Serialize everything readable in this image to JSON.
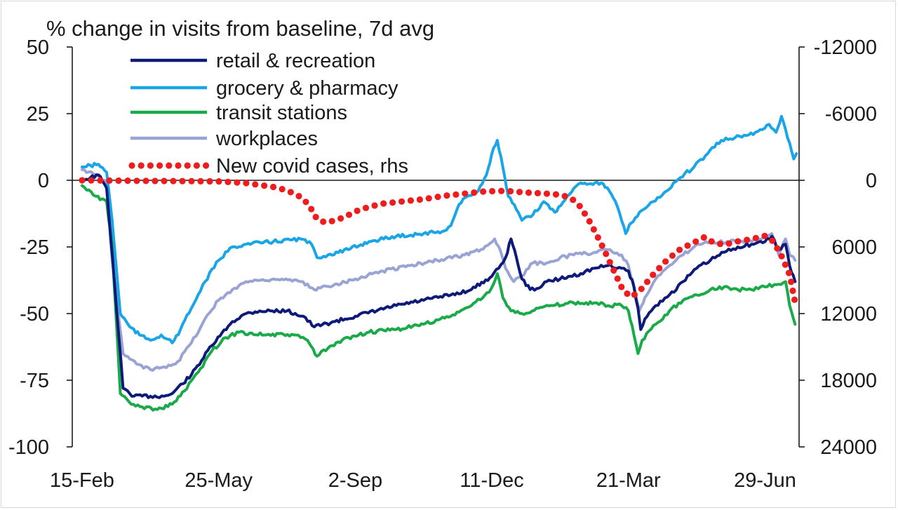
{
  "chart_data": {
    "type": "line",
    "title": "% change in visits from baseline, 7d avg",
    "x_tick_labels": [
      "15-Feb",
      "25-May",
      "2-Sep",
      "11-Dec",
      "21-Mar",
      "29-Jun"
    ],
    "x_tick_positions": [
      0,
      100,
      200,
      300,
      400,
      500
    ],
    "x_range": [
      0,
      530
    ],
    "y_left": {
      "ticks": [
        "50",
        "25",
        "0",
        "-25",
        "-50",
        "-75",
        "-100"
      ],
      "range": [
        -100,
        50
      ]
    },
    "y_right": {
      "ticks": [
        "-12000",
        "-6000",
        "0",
        "6000",
        "12000",
        "18000",
        "24000"
      ],
      "range": [
        -12000,
        24000
      ],
      "inverted": true
    },
    "zero_line": true,
    "grid": false,
    "legend_position": "top-left",
    "series": [
      {
        "name": "retail & recreation",
        "color": "#0d1a7a",
        "axis": "left",
        "style": "solid",
        "points": [
          [
            0,
            0
          ],
          [
            12,
            2
          ],
          [
            18,
            -3
          ],
          [
            24,
            -40
          ],
          [
            30,
            -78
          ],
          [
            38,
            -81
          ],
          [
            50,
            -81
          ],
          [
            60,
            -81
          ],
          [
            66,
            -80
          ],
          [
            80,
            -73
          ],
          [
            95,
            -62
          ],
          [
            110,
            -53
          ],
          [
            120,
            -50
          ],
          [
            130,
            -49
          ],
          [
            150,
            -49
          ],
          [
            162,
            -51
          ],
          [
            170,
            -55
          ],
          [
            185,
            -53
          ],
          [
            200,
            -51
          ],
          [
            230,
            -47
          ],
          [
            250,
            -45
          ],
          [
            270,
            -43
          ],
          [
            285,
            -41
          ],
          [
            300,
            -36
          ],
          [
            305,
            -33
          ],
          [
            310,
            -29
          ],
          [
            314,
            -22
          ],
          [
            318,
            -29
          ],
          [
            322,
            -37
          ],
          [
            328,
            -41
          ],
          [
            336,
            -40
          ],
          [
            340,
            -38
          ],
          [
            350,
            -37
          ],
          [
            365,
            -35
          ],
          [
            375,
            -33
          ],
          [
            385,
            -32
          ],
          [
            395,
            -33
          ],
          [
            400,
            -34
          ],
          [
            404,
            -40
          ],
          [
            407,
            -48
          ],
          [
            409,
            -56
          ],
          [
            412,
            -52
          ],
          [
            420,
            -47
          ],
          [
            430,
            -43
          ],
          [
            440,
            -38
          ],
          [
            450,
            -33
          ],
          [
            460,
            -30
          ],
          [
            470,
            -27
          ],
          [
            480,
            -25
          ],
          [
            490,
            -24
          ],
          [
            500,
            -23
          ],
          [
            505,
            -21
          ],
          [
            510,
            -26
          ],
          [
            515,
            -24
          ],
          [
            518,
            -32
          ],
          [
            522,
            -38
          ]
        ]
      },
      {
        "name": "grocery & pharmacy",
        "color": "#1aa6e6",
        "axis": "left",
        "style": "solid",
        "points": [
          [
            0,
            5
          ],
          [
            12,
            6
          ],
          [
            18,
            3
          ],
          [
            22,
            -15
          ],
          [
            28,
            -50
          ],
          [
            35,
            -55
          ],
          [
            42,
            -58
          ],
          [
            50,
            -60
          ],
          [
            58,
            -58
          ],
          [
            66,
            -61
          ],
          [
            72,
            -56
          ],
          [
            80,
            -48
          ],
          [
            90,
            -38
          ],
          [
            100,
            -30
          ],
          [
            110,
            -25
          ],
          [
            120,
            -24
          ],
          [
            140,
            -23
          ],
          [
            160,
            -22
          ],
          [
            168,
            -24
          ],
          [
            172,
            -29
          ],
          [
            180,
            -28
          ],
          [
            195,
            -26
          ],
          [
            210,
            -23
          ],
          [
            230,
            -21
          ],
          [
            250,
            -20
          ],
          [
            265,
            -19
          ],
          [
            270,
            -17
          ],
          [
            276,
            -9
          ],
          [
            282,
            -6
          ],
          [
            290,
            -4
          ],
          [
            296,
            2
          ],
          [
            300,
            10
          ],
          [
            304,
            15
          ],
          [
            308,
            5
          ],
          [
            312,
            -6
          ],
          [
            318,
            -11
          ],
          [
            322,
            -15
          ],
          [
            330,
            -13
          ],
          [
            338,
            -8
          ],
          [
            346,
            -12
          ],
          [
            355,
            -6
          ],
          [
            360,
            -3
          ],
          [
            365,
            -1
          ],
          [
            380,
            -1
          ],
          [
            386,
            -4
          ],
          [
            392,
            -10
          ],
          [
            398,
            -20
          ],
          [
            402,
            -16
          ],
          [
            408,
            -12
          ],
          [
            418,
            -8
          ],
          [
            428,
            -4
          ],
          [
            438,
            1
          ],
          [
            448,
            5
          ],
          [
            458,
            10
          ],
          [
            468,
            15
          ],
          [
            478,
            16
          ],
          [
            488,
            17
          ],
          [
            498,
            19
          ],
          [
            503,
            21
          ],
          [
            508,
            18
          ],
          [
            512,
            24
          ],
          [
            518,
            14
          ],
          [
            521,
            8
          ],
          [
            523,
            10
          ]
        ]
      },
      {
        "name": "transit stations",
        "color": "#1aaa4a",
        "axis": "left",
        "style": "solid",
        "points": [
          [
            0,
            -2
          ],
          [
            10,
            -6
          ],
          [
            18,
            -8
          ],
          [
            22,
            -25
          ],
          [
            28,
            -80
          ],
          [
            36,
            -84
          ],
          [
            44,
            -85
          ],
          [
            55,
            -86
          ],
          [
            66,
            -84
          ],
          [
            75,
            -79
          ],
          [
            85,
            -72
          ],
          [
            95,
            -64
          ],
          [
            105,
            -59
          ],
          [
            115,
            -57
          ],
          [
            135,
            -58
          ],
          [
            155,
            -58
          ],
          [
            165,
            -60
          ],
          [
            172,
            -66
          ],
          [
            180,
            -63
          ],
          [
            195,
            -59
          ],
          [
            210,
            -57
          ],
          [
            230,
            -56
          ],
          [
            250,
            -54
          ],
          [
            270,
            -51
          ],
          [
            285,
            -47
          ],
          [
            298,
            -42
          ],
          [
            304,
            -35
          ],
          [
            308,
            -44
          ],
          [
            314,
            -49
          ],
          [
            322,
            -50
          ],
          [
            334,
            -48
          ],
          [
            345,
            -47
          ],
          [
            360,
            -46
          ],
          [
            375,
            -46
          ],
          [
            385,
            -47
          ],
          [
            395,
            -47
          ],
          [
            400,
            -49
          ],
          [
            404,
            -58
          ],
          [
            407,
            -65
          ],
          [
            410,
            -60
          ],
          [
            420,
            -54
          ],
          [
            430,
            -49
          ],
          [
            440,
            -45
          ],
          [
            450,
            -43
          ],
          [
            460,
            -41
          ],
          [
            470,
            -40
          ],
          [
            480,
            -41
          ],
          [
            490,
            -41
          ],
          [
            500,
            -40
          ],
          [
            510,
            -39
          ],
          [
            515,
            -38
          ],
          [
            518,
            -47
          ],
          [
            522,
            -54
          ]
        ]
      },
      {
        "name": "workplaces",
        "color": "#9aa4d4",
        "axis": "left",
        "style": "solid",
        "points": [
          [
            0,
            4
          ],
          [
            10,
            2
          ],
          [
            18,
            -1
          ],
          [
            22,
            -30
          ],
          [
            30,
            -65
          ],
          [
            40,
            -69
          ],
          [
            50,
            -71
          ],
          [
            60,
            -70
          ],
          [
            70,
            -68
          ],
          [
            80,
            -61
          ],
          [
            90,
            -52
          ],
          [
            100,
            -45
          ],
          [
            110,
            -41
          ],
          [
            120,
            -38
          ],
          [
            140,
            -37
          ],
          [
            160,
            -38
          ],
          [
            170,
            -41
          ],
          [
            185,
            -39
          ],
          [
            200,
            -37
          ],
          [
            220,
            -34
          ],
          [
            240,
            -32
          ],
          [
            260,
            -30
          ],
          [
            280,
            -28
          ],
          [
            292,
            -26
          ],
          [
            302,
            -22
          ],
          [
            306,
            -26
          ],
          [
            310,
            -33
          ],
          [
            316,
            -38
          ],
          [
            322,
            -36
          ],
          [
            330,
            -31
          ],
          [
            340,
            -31
          ],
          [
            350,
            -29
          ],
          [
            360,
            -28
          ],
          [
            375,
            -27
          ],
          [
            385,
            -26
          ],
          [
            395,
            -28
          ],
          [
            400,
            -32
          ],
          [
            405,
            -42
          ],
          [
            408,
            -49
          ],
          [
            412,
            -44
          ],
          [
            420,
            -37
          ],
          [
            430,
            -32
          ],
          [
            440,
            -28
          ],
          [
            450,
            -24
          ],
          [
            460,
            -23
          ],
          [
            480,
            -23
          ],
          [
            495,
            -22
          ],
          [
            505,
            -20
          ],
          [
            510,
            -28
          ],
          [
            515,
            -22
          ],
          [
            518,
            -28
          ],
          [
            522,
            -30
          ]
        ]
      },
      {
        "name": "New covid cases, rhs",
        "color": "#ee1c1c",
        "axis": "right",
        "style": "dotted",
        "points": [
          [
            0,
            0
          ],
          [
            40,
            50
          ],
          [
            80,
            80
          ],
          [
            100,
            100
          ],
          [
            120,
            250
          ],
          [
            140,
            600
          ],
          [
            150,
            900
          ],
          [
            160,
            1500
          ],
          [
            166,
            2200
          ],
          [
            172,
            3500
          ],
          [
            178,
            3800
          ],
          [
            186,
            3600
          ],
          [
            194,
            3200
          ],
          [
            200,
            2800
          ],
          [
            210,
            2400
          ],
          [
            220,
            2100
          ],
          [
            235,
            1900
          ],
          [
            250,
            1700
          ],
          [
            265,
            1400
          ],
          [
            280,
            1200
          ],
          [
            295,
            1000
          ],
          [
            310,
            950
          ],
          [
            325,
            1100
          ],
          [
            340,
            1200
          ],
          [
            350,
            1300
          ],
          [
            358,
            1600
          ],
          [
            365,
            2400
          ],
          [
            372,
            3800
          ],
          [
            380,
            5700
          ],
          [
            388,
            7800
          ],
          [
            396,
            9900
          ],
          [
            402,
            10500
          ],
          [
            408,
            10000
          ],
          [
            418,
            8500
          ],
          [
            428,
            7200
          ],
          [
            438,
            6200
          ],
          [
            448,
            5600
          ],
          [
            456,
            5100
          ],
          [
            462,
            5600
          ],
          [
            470,
            5800
          ],
          [
            480,
            5500
          ],
          [
            490,
            5300
          ],
          [
            500,
            5000
          ],
          [
            506,
            5500
          ],
          [
            512,
            6800
          ],
          [
            518,
            8500
          ],
          [
            522,
            11000
          ]
        ]
      }
    ]
  }
}
